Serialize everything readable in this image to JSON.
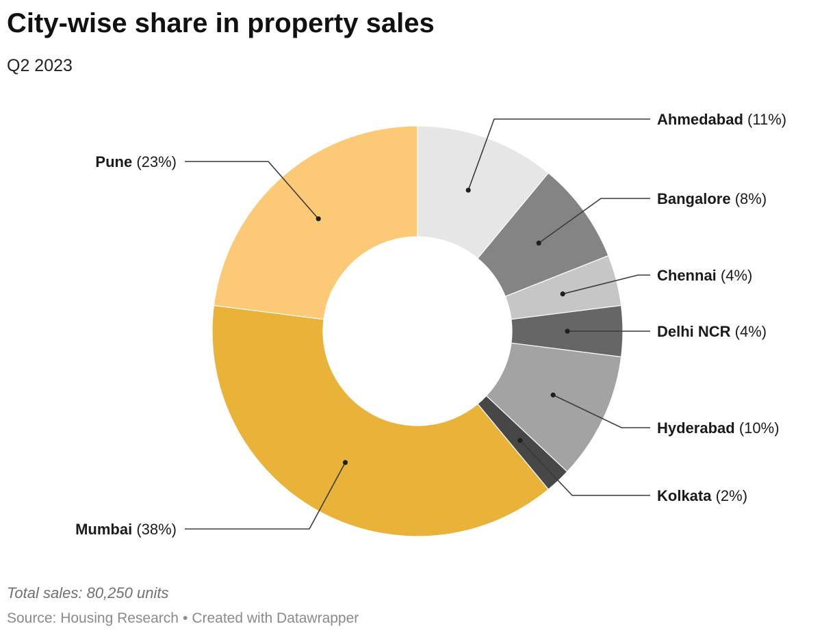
{
  "title": "City-wise share in property sales",
  "subtitle": "Q2 2023",
  "note": "Total sales: 80,250 units",
  "footer": {
    "source": "Source: Housing Research",
    "separator": "•",
    "credit": "Created with Datawrapper"
  },
  "chart_data": {
    "type": "pie",
    "donut": true,
    "title": "City-wise share in property sales",
    "subtitle": "Q2 2023",
    "unit": "%",
    "categories": [
      "Ahmedabad",
      "Bangalore",
      "Chennai",
      "Delhi NCR",
      "Hyderabad",
      "Kolkata",
      "Mumbai",
      "Pune"
    ],
    "values": [
      11,
      8,
      4,
      4,
      10,
      2,
      38,
      23
    ],
    "value_labels": [
      "(11%)",
      "(8%)",
      "(4%)",
      "(4%)",
      "(10%)",
      "(2%)",
      "(38%)",
      "(23%)"
    ],
    "colors": [
      "#e6e6e6",
      "#848484",
      "#c6c6c6",
      "#666666",
      "#a3a3a3",
      "#474747",
      "#e9b33a",
      "#fcc976"
    ],
    "label_sides": [
      "right",
      "right",
      "right",
      "right",
      "right",
      "right",
      "left",
      "left"
    ],
    "legend": "none"
  }
}
